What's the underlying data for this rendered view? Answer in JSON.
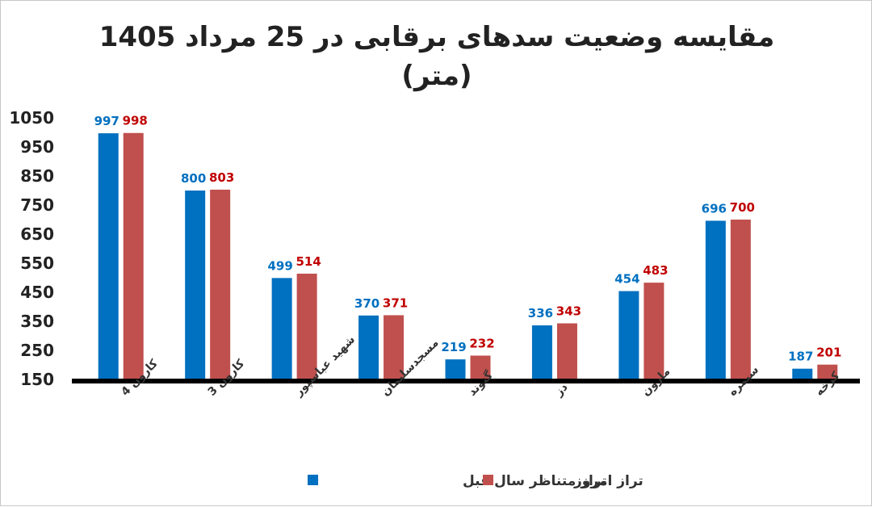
{
  "chart_data": {
    "type": "bar",
    "title": "مقایسه وضعیت سدهای برقابی در 25 مرداد 1405",
    "subtitle": "(متر)",
    "categories": [
      "کارون 4",
      "کارون 3",
      "شهید عباسپور",
      "مسجدسلیمان",
      "گتوند",
      "دز",
      "مارون",
      "سیمره",
      "کرخه"
    ],
    "series": [
      {
        "name": "تراز متناظر سال قبل",
        "color": "#0070C0",
        "label_color": "#0070C0",
        "values": [
          997,
          800,
          499,
          370,
          219,
          336,
          454,
          696,
          187
        ]
      },
      {
        "name": "تراز امروز",
        "color": "#C0504D",
        "label_color": "#C00000",
        "values": [
          998,
          803,
          514,
          371,
          232,
          343,
          483,
          700,
          201
        ]
      }
    ],
    "yticks": [
      150,
      250,
      350,
      450,
      550,
      650,
      750,
      850,
      950,
      1050
    ],
    "ylim": [
      150,
      1050
    ],
    "xlabel": "",
    "ylabel": "",
    "grid": false,
    "legend_position": "bottom"
  }
}
